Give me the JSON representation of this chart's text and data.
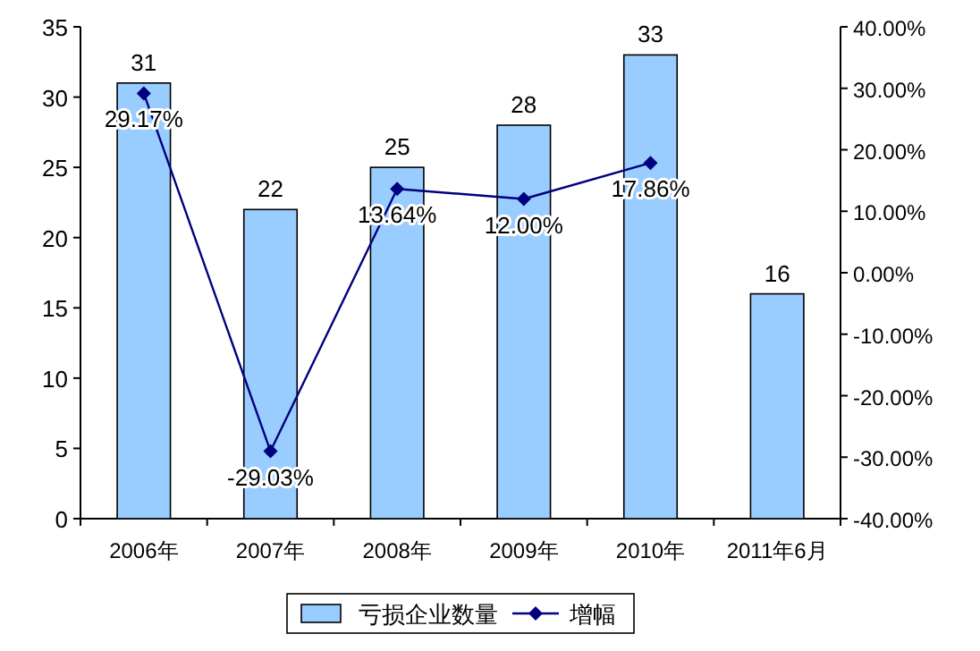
{
  "chart_data": {
    "type": "bar",
    "categories": [
      "2006年",
      "2007年",
      "2008年",
      "2009年",
      "2010年",
      "2011年6月"
    ],
    "series": [
      {
        "name": "亏损企业数量",
        "color": "#99ccff",
        "values": [
          31,
          22,
          25,
          28,
          33,
          16
        ],
        "value_labels": [
          "31",
          "22",
          "25",
          "28",
          "33",
          "16"
        ]
      },
      {
        "name": "增幅",
        "type": "line",
        "axis": "y2",
        "color": "#000080",
        "values": [
          29.17,
          -29.03,
          13.64,
          12.0,
          17.86,
          null
        ],
        "value_labels": [
          "29.17%",
          "-29.03%",
          "13.64%",
          "12.00%",
          "17.86%",
          null
        ]
      }
    ],
    "ylim": [
      0,
      35
    ],
    "yticks": [
      0,
      5,
      10,
      15,
      20,
      25,
      30,
      35
    ],
    "y2lim": [
      -40,
      40
    ],
    "y2ticks": [
      {
        "value": -40,
        "label": "-40.00%"
      },
      {
        "value": -30,
        "label": "-30.00%"
      },
      {
        "value": -20,
        "label": "-20.00%"
      },
      {
        "value": -10,
        "label": "-10.00%"
      },
      {
        "value": 0,
        "label": "0.00%"
      },
      {
        "value": 10,
        "label": "10.00%"
      },
      {
        "value": 20,
        "label": "20.00%"
      },
      {
        "value": 30,
        "label": "30.00%"
      },
      {
        "value": 40,
        "label": "40.00%"
      }
    ],
    "marker": "diamond",
    "line_style": "solid",
    "legend": "bottom",
    "grid": false
  }
}
